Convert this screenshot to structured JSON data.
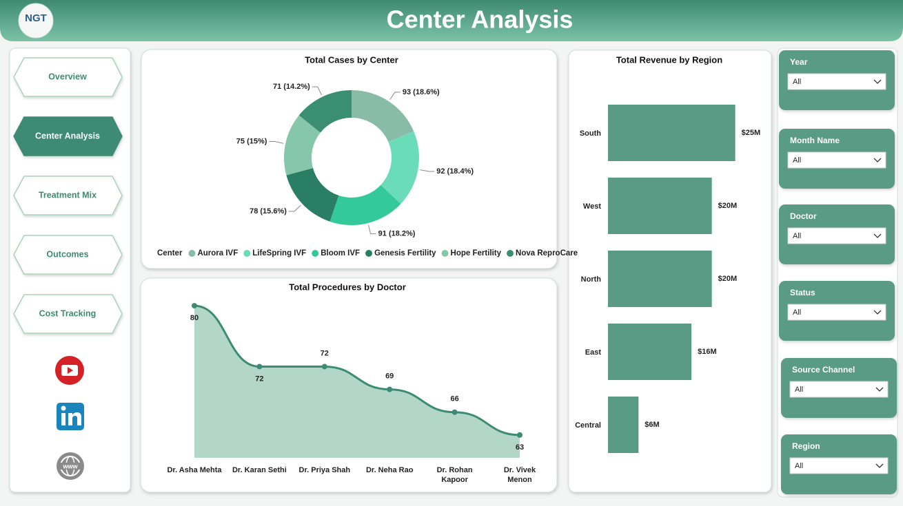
{
  "header": {
    "title": "Center Analysis",
    "logo": "NGT"
  },
  "nav": {
    "items": [
      "Overview",
      "Center Analysis",
      "Treatment Mix",
      "Outcomes",
      "Cost Tracking"
    ]
  },
  "filters": [
    {
      "label": "Year",
      "value": "All"
    },
    {
      "label": "Month Name",
      "value": "All"
    },
    {
      "label": "Doctor",
      "value": "All"
    },
    {
      "label": "Status",
      "value": "All"
    },
    {
      "label": "Source Channel",
      "value": "All"
    },
    {
      "label": "Region",
      "value": "All"
    }
  ],
  "chart_data": [
    {
      "type": "pie",
      "title": "Total Cases by Center",
      "legend_title": "Center",
      "hole": true,
      "categories": [
        "Aurora IVF",
        "LifeSpring IVF",
        "Bloom IVF",
        "Genesis Fertility",
        "Hope Fertility",
        "Nova ReproCare"
      ],
      "values": [
        93,
        92,
        91,
        78,
        75,
        71
      ],
      "value_labels": [
        "93 (18.6%)",
        "92 (18.4%)",
        "91 (18.2%)",
        "78 (15.6%)",
        "75 (15%)",
        "71 (14.2%)"
      ],
      "colors": [
        "#88bca8",
        "#6bdcb8",
        "#34c998",
        "#2a7e64",
        "#86c6aa",
        "#3a8e72"
      ]
    },
    {
      "type": "area",
      "title": "Total Procedures by Doctor",
      "categories": [
        "Dr. Asha Mehta",
        "Dr. Karan Sethi",
        "Dr. Priya Shah",
        "Dr. Neha Rao",
        "Dr. Rohan Kapoor",
        "Dr. Vivek Menon"
      ],
      "values": [
        80,
        72,
        72,
        69,
        66,
        63
      ],
      "ylim": [
        60,
        82
      ],
      "color": "#3d8b73",
      "fill": "#b2d6c8"
    },
    {
      "type": "bar",
      "orientation": "horizontal",
      "title": "Total Revenue by Region",
      "categories": [
        "South",
        "West",
        "North",
        "East",
        "Central"
      ],
      "values": [
        25000000,
        20400000,
        20400000,
        16400000,
        6000000
      ],
      "value_labels": [
        "$25M",
        "$20M",
        "$20M",
        "$16M",
        "$6M"
      ],
      "xlim": [
        0,
        26000000
      ],
      "color": "#589a84"
    }
  ]
}
